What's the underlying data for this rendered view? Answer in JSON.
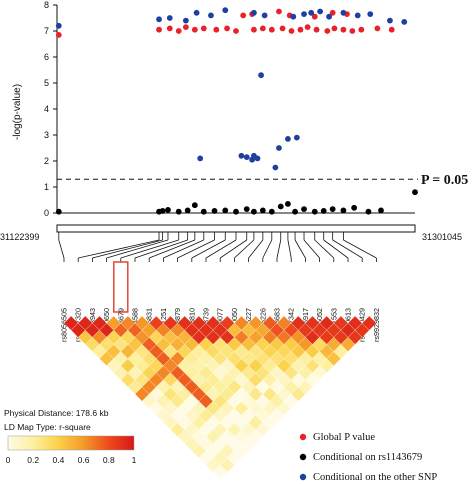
{
  "chart_data": [
    {
      "type": "scatter",
      "ylabel": "-log(p-value)",
      "ylim": [
        0,
        8
      ],
      "yticks": [
        0,
        1,
        2,
        3,
        4,
        5,
        6,
        7,
        8
      ],
      "xlim": [
        0,
        1
      ],
      "threshold": {
        "y": 1.3,
        "label": "P = 0.05"
      },
      "series": [
        {
          "name": "Global P value",
          "color": "#e8212b",
          "points": [
            [
              0.005,
              6.85
            ],
            [
              0.285,
              7.05
            ],
            [
              0.315,
              7.1
            ],
            [
              0.34,
              7.0
            ],
            [
              0.36,
              7.15
            ],
            [
              0.385,
              7.05
            ],
            [
              0.41,
              7.1
            ],
            [
              0.445,
              7.05
            ],
            [
              0.475,
              7.1
            ],
            [
              0.5,
              7.0
            ],
            [
              0.55,
              7.05
            ],
            [
              0.575,
              7.1
            ],
            [
              0.6,
              7.05
            ],
            [
              0.63,
              7.1
            ],
            [
              0.655,
              7.0
            ],
            [
              0.68,
              7.05
            ],
            [
              0.7,
              7.15
            ],
            [
              0.725,
              7.05
            ],
            [
              0.755,
              7.0
            ],
            [
              0.775,
              7.1
            ],
            [
              0.8,
              7.05
            ],
            [
              0.825,
              7.0
            ],
            [
              0.85,
              7.05
            ],
            [
              0.895,
              7.1
            ],
            [
              0.935,
              7.05
            ],
            [
              0.52,
              7.6
            ],
            [
              0.545,
              7.65
            ],
            [
              0.62,
              7.75
            ],
            [
              0.65,
              7.6
            ],
            [
              0.72,
              7.55
            ],
            [
              0.77,
              7.7
            ],
            [
              0.81,
              7.65
            ]
          ]
        },
        {
          "name": "Conditional on rs1143679",
          "color": "#000000",
          "points": [
            [
              0.005,
              0.05
            ],
            [
              0.285,
              0.05
            ],
            [
              0.295,
              0.08
            ],
            [
              0.31,
              0.12
            ],
            [
              0.34,
              0.05
            ],
            [
              0.365,
              0.1
            ],
            [
              0.385,
              0.3
            ],
            [
              0.41,
              0.05
            ],
            [
              0.44,
              0.08
            ],
            [
              0.47,
              0.1
            ],
            [
              0.5,
              0.05
            ],
            [
              0.53,
              0.15
            ],
            [
              0.55,
              0.05
            ],
            [
              0.575,
              0.1
            ],
            [
              0.6,
              0.05
            ],
            [
              0.625,
              0.25
            ],
            [
              0.645,
              0.35
            ],
            [
              0.665,
              0.05
            ],
            [
              0.69,
              0.15
            ],
            [
              0.72,
              0.05
            ],
            [
              0.745,
              0.08
            ],
            [
              0.77,
              0.15
            ],
            [
              0.8,
              0.1
            ],
            [
              0.83,
              0.2
            ],
            [
              0.87,
              0.05
            ],
            [
              0.905,
              0.1
            ],
            [
              1.0,
              0.8
            ]
          ]
        },
        {
          "name": "Conditional on the other SNP",
          "color": "#2040a0",
          "points": [
            [
              0.005,
              7.2
            ],
            [
              0.285,
              7.45
            ],
            [
              0.315,
              7.5
            ],
            [
              0.36,
              7.4
            ],
            [
              0.39,
              7.7
            ],
            [
              0.43,
              7.6
            ],
            [
              0.47,
              7.8
            ],
            [
              0.55,
              7.7
            ],
            [
              0.58,
              7.6
            ],
            [
              0.66,
              7.55
            ],
            [
              0.69,
              7.65
            ],
            [
              0.71,
              7.7
            ],
            [
              0.735,
              7.75
            ],
            [
              0.76,
              7.55
            ],
            [
              0.8,
              7.7
            ],
            [
              0.84,
              7.6
            ],
            [
              0.875,
              7.65
            ],
            [
              0.93,
              7.4
            ],
            [
              0.97,
              7.35
            ],
            [
              0.515,
              2.2
            ],
            [
              0.53,
              2.15
            ],
            [
              0.545,
              2.05
            ],
            [
              0.56,
              2.1
            ],
            [
              0.55,
              2.2
            ],
            [
              0.57,
              5.3
            ],
            [
              0.62,
              2.5
            ],
            [
              0.645,
              2.85
            ],
            [
              0.67,
              2.9
            ],
            [
              0.4,
              2.1
            ],
            [
              0.61,
              1.75
            ]
          ]
        }
      ],
      "legend": {
        "placement": "bottom-right"
      }
    },
    {
      "type": "heatmap",
      "title": "LD Map Type: r-square",
      "colorbar": {
        "ticks": [
          "0",
          "0.2",
          "0.4",
          "0.6",
          "0.8",
          "1"
        ],
        "min": 0,
        "max": 1
      },
      "snps": [
        "rs8056505",
        "rs8057320",
        "rs7193943",
        "rs11860650",
        "rs1143679",
        "rs8044588",
        "rs9936831",
        "rs11861251",
        "rs9888879",
        "rs12928810",
        "rs9888739",
        "rs7499077",
        "rs11860050",
        "rs6565227",
        "rs7206226",
        "rs1143683",
        "rs4597342",
        "rs4506917",
        "rs4075052",
        "rs4281553",
        "rs11150613",
        "rs2230429",
        "rs9929832"
      ],
      "highlighted_snp": "rs1143679"
    }
  ],
  "positions": {
    "start": "31122399",
    "end": "31301045"
  },
  "physical_distance": "Physical Distance: 178.6 kb"
}
